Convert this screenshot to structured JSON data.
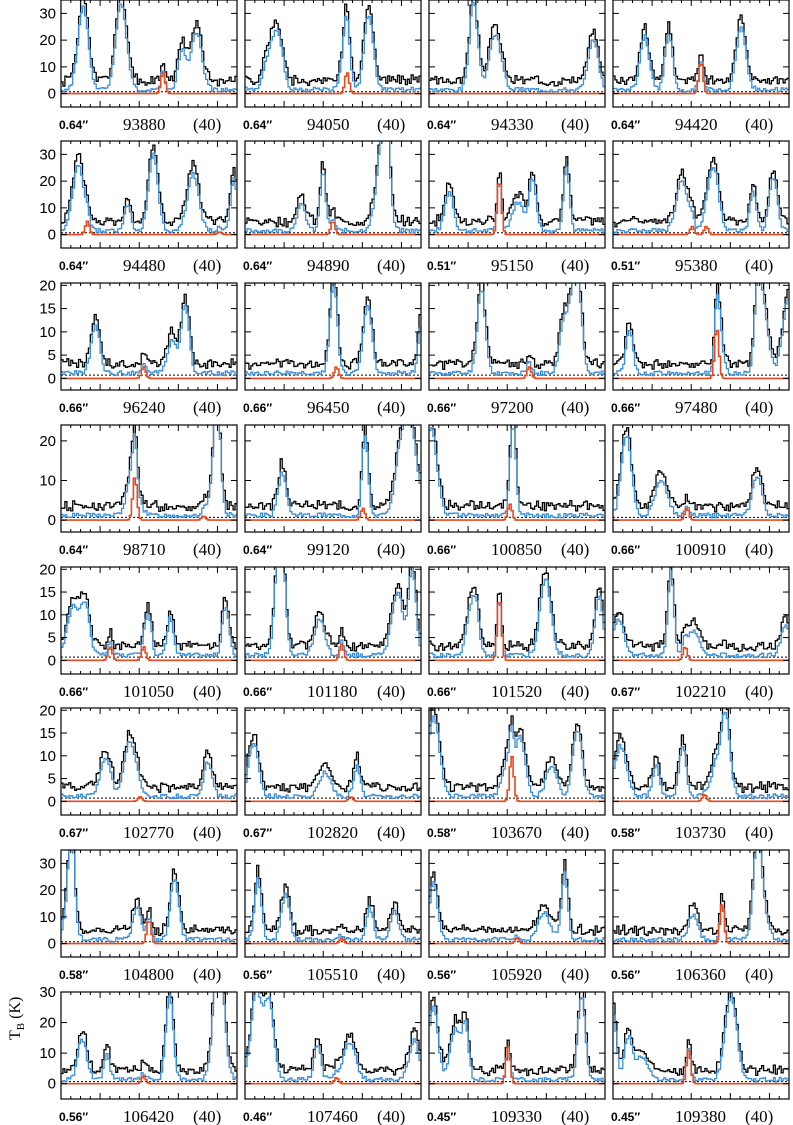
{
  "figure": {
    "ylabel": "T_B (K)",
    "ylabel_main": "T",
    "ylabel_sub": "B",
    "ylabel_unit": "(K)"
  },
  "colors": {
    "observed": "#000000",
    "model_total": "#3a8fd8",
    "model_species": "#e8491d"
  },
  "chart_data": {
    "type": "line",
    "description_series": [
      "observed spectrum",
      "full model",
      "species model"
    ],
    "rows": [
      {
        "ylim": [
          -5,
          35
        ],
        "yticks": [
          0,
          10,
          20,
          30
        ]
      },
      {
        "ylim": [
          -5,
          35
        ],
        "yticks": [
          0,
          10,
          20,
          30
        ]
      },
      {
        "ylim": [
          -2.5,
          20.5
        ],
        "yticks": [
          0,
          5,
          10,
          15,
          20
        ]
      },
      {
        "ylim": [
          -3,
          24
        ],
        "yticks": [
          0,
          10,
          20
        ]
      },
      {
        "ylim": [
          -3,
          20.5
        ],
        "yticks": [
          0,
          5,
          10,
          15,
          20
        ]
      },
      {
        "ylim": [
          -3,
          20.5
        ],
        "yticks": [
          0,
          5,
          10,
          15,
          20
        ]
      },
      {
        "ylim": [
          -5,
          35
        ],
        "yticks": [
          0,
          10,
          20,
          30
        ]
      },
      {
        "ylim": [
          -5,
          30
        ],
        "yticks": [
          0,
          10,
          20,
          30
        ]
      }
    ],
    "panels": [
      {
        "beam": "0.64″",
        "freq": "93880",
        "width": "(40)",
        "pk": [
          [
            0.58,
            8
          ]
        ],
        "seed": 1
      },
      {
        "beam": "0.64″",
        "freq": "94050",
        "width": "(40)",
        "pk": [
          [
            0.58,
            8
          ]
        ],
        "seed": 2
      },
      {
        "beam": "0.64″",
        "freq": "94330",
        "width": "(40)",
        "pk": [],
        "seed": 3
      },
      {
        "beam": "0.64″",
        "freq": "94420",
        "width": "(40)",
        "pk": [
          [
            0.5,
            12
          ]
        ],
        "seed": 4
      },
      {
        "beam": "0.64″",
        "freq": "94480",
        "width": "(40)",
        "pk": [
          [
            0.15,
            5
          ],
          [
            0.9,
            1
          ]
        ],
        "seed": 5
      },
      {
        "beam": "0.64″",
        "freq": "94890",
        "width": "(40)",
        "pk": [
          [
            0.5,
            5
          ]
        ],
        "seed": 6
      },
      {
        "beam": "0.51″",
        "freq": "95150",
        "width": "(40)",
        "pk": [
          [
            0.4,
            21
          ]
        ],
        "seed": 7
      },
      {
        "beam": "0.51″",
        "freq": "95380",
        "width": "(40)",
        "pk": [
          [
            0.45,
            3
          ],
          [
            0.53,
            3
          ]
        ],
        "seed": 8
      },
      {
        "beam": "0.66″",
        "freq": "96240",
        "width": "(40)",
        "pk": [
          [
            0.47,
            2.5
          ]
        ],
        "seed": 9
      },
      {
        "beam": "0.66″",
        "freq": "96450",
        "width": "(40)",
        "pk": [
          [
            0.52,
            2.5
          ]
        ],
        "seed": 10
      },
      {
        "beam": "0.66″",
        "freq": "97200",
        "width": "(40)",
        "pk": [
          [
            0.57,
            2.5
          ]
        ],
        "seed": 11
      },
      {
        "beam": "0.66″",
        "freq": "97480",
        "width": "(40)",
        "pk": [
          [
            0.59,
            11
          ]
        ],
        "seed": 12
      },
      {
        "beam": "0.64″",
        "freq": "98710",
        "width": "(40)",
        "pk": [
          [
            0.42,
            11
          ],
          [
            0.81,
            1
          ]
        ],
        "seed": 13
      },
      {
        "beam": "0.64″",
        "freq": "99120",
        "width": "(40)",
        "pk": [
          [
            0.67,
            3
          ]
        ],
        "seed": 14
      },
      {
        "beam": "0.66″",
        "freq": "100850",
        "width": "(40)",
        "pk": [
          [
            0.46,
            4
          ]
        ],
        "seed": 15
      },
      {
        "beam": "0.66″",
        "freq": "100910",
        "width": "(40)",
        "pk": [
          [
            0.42,
            3
          ]
        ],
        "seed": 16
      },
      {
        "beam": "0.66″",
        "freq": "101050",
        "width": "(40)",
        "pk": [
          [
            0.28,
            3
          ],
          [
            0.47,
            3
          ]
        ],
        "seed": 17
      },
      {
        "beam": "0.66″",
        "freq": "101180",
        "width": "(40)",
        "pk": [
          [
            0.55,
            3.5
          ]
        ],
        "seed": 18
      },
      {
        "beam": "0.66″",
        "freq": "101520",
        "width": "(40)",
        "pk": [
          [
            0.4,
            14
          ]
        ],
        "seed": 19
      },
      {
        "beam": "0.67″",
        "freq": "102210",
        "width": "(40)",
        "pk": [
          [
            0.41,
            3
          ]
        ],
        "seed": 20
      },
      {
        "beam": "0.67″",
        "freq": "102770",
        "width": "(40)",
        "pk": [
          [
            0.45,
            1
          ]
        ],
        "seed": 21
      },
      {
        "beam": "0.67″",
        "freq": "102820",
        "width": "(40)",
        "pk": [
          [
            0.6,
            1
          ]
        ],
        "seed": 22
      },
      {
        "beam": "0.58″",
        "freq": "103670",
        "width": "(40)",
        "pk": [
          [
            0.47,
            10
          ]
        ],
        "seed": 23
      },
      {
        "beam": "0.58″",
        "freq": "103730",
        "width": "(40)",
        "pk": [
          [
            0.52,
            1.5
          ]
        ],
        "seed": 24
      },
      {
        "beam": "0.58″",
        "freq": "104800",
        "width": "(40)",
        "pk": [
          [
            0.5,
            9
          ]
        ],
        "seed": 25
      },
      {
        "beam": "0.56″",
        "freq": "105510",
        "width": "(40)",
        "pk": [
          [
            0.55,
            2
          ]
        ],
        "seed": 26
      },
      {
        "beam": "0.56″",
        "freq": "105920",
        "width": "(40)",
        "pk": [
          [
            0.5,
            2
          ]
        ],
        "seed": 27
      },
      {
        "beam": "0.56″",
        "freq": "106360",
        "width": "(40)",
        "pk": [
          [
            0.62,
            15
          ]
        ],
        "seed": 28
      },
      {
        "beam": "0.56″",
        "freq": "106420",
        "width": "(40)",
        "pk": [
          [
            0.47,
            2.5
          ]
        ],
        "seed": 29
      },
      {
        "beam": "0.46″",
        "freq": "107460",
        "width": "(40)",
        "pk": [
          [
            0.52,
            2
          ]
        ],
        "seed": 30
      },
      {
        "beam": "0.45″",
        "freq": "109330",
        "width": "(40)",
        "pk": [
          [
            0.45,
            12
          ]
        ],
        "seed": 31
      },
      {
        "beam": "0.45″",
        "freq": "109380",
        "width": "(40)",
        "pk": [
          [
            0.43,
            11
          ]
        ],
        "seed": 32
      }
    ]
  }
}
